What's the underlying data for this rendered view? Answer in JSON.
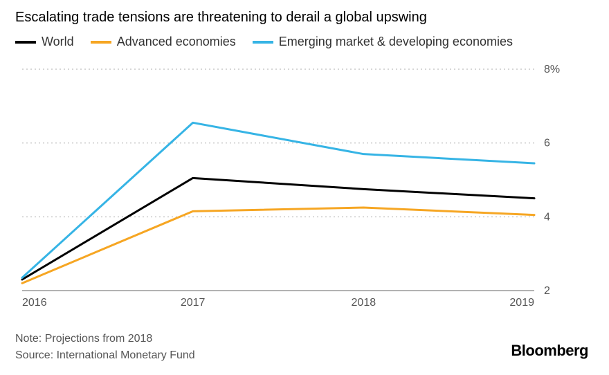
{
  "title": "Escalating trade tensions are threatening to derail a global upswing",
  "legend": {
    "items": [
      {
        "label": "World",
        "color": "#000000"
      },
      {
        "label": "Advanced economies",
        "color": "#f6a623"
      },
      {
        "label": "Emerging market & developing economies",
        "color": "#36b4e5"
      }
    ]
  },
  "chart": {
    "type": "line",
    "background_color": "#ffffff",
    "grid_color": "#c9c9c9",
    "axis_color": "#666666",
    "line_width": 3,
    "title_fontsize": 20,
    "legend_fontsize": 18,
    "tick_fontsize": 16,
    "x": {
      "ticks": [
        2016,
        2017,
        2018,
        2019
      ],
      "lim": [
        2016,
        2019
      ]
    },
    "y": {
      "ticks": [
        2,
        4,
        6,
        8
      ],
      "lim": [
        2,
        8
      ],
      "suffix_on_top": "%"
    },
    "series": [
      {
        "name": "World",
        "color": "#000000",
        "x": [
          2016,
          2017,
          2018,
          2019
        ],
        "y": [
          2.3,
          5.05,
          4.75,
          4.5
        ]
      },
      {
        "name": "Advanced economies",
        "color": "#f6a623",
        "x": [
          2016,
          2017,
          2018,
          2019
        ],
        "y": [
          2.2,
          4.15,
          4.25,
          4.05
        ]
      },
      {
        "name": "Emerging market & developing economies",
        "color": "#36b4e5",
        "x": [
          2016,
          2017,
          2018,
          2019
        ],
        "y": [
          2.35,
          6.55,
          5.7,
          5.45
        ]
      }
    ]
  },
  "footer": {
    "note": "Note: Projections from 2018",
    "source": "Source: International Monetary Fund"
  },
  "brand": "Bloomberg"
}
